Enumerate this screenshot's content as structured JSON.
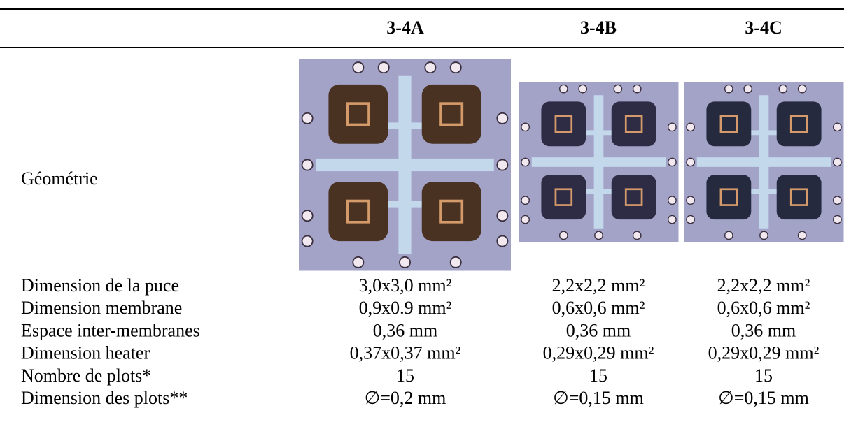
{
  "table": {
    "columns": [
      "3-4A",
      "3-4B",
      "3-4C"
    ],
    "geometry_label": "Géométrie",
    "rows": [
      [
        "Dimension de la puce",
        "3,0x3,0 mm²",
        "2,2x2,2 mm²",
        "2,2x2,2 mm²"
      ],
      [
        "Dimension membrane",
        "0,9x0.9 mm²",
        "0,6x0,6 mm²",
        "0,6x0,6 mm²"
      ],
      [
        "Espace inter-membranes",
        "0,36 mm",
        "0,36 mm",
        "0,36 mm"
      ],
      [
        "Dimension heater",
        "0,37x0,37 mm²",
        "0,29x0,29 mm²",
        "0,29x0,29 mm²"
      ],
      [
        "Nombre de plots*",
        "15",
        "15",
        "15"
      ],
      [
        "Dimension des plots**",
        "∅=0,2 mm",
        "∅=0,15 mm",
        "∅=0,15 mm"
      ]
    ]
  }
}
